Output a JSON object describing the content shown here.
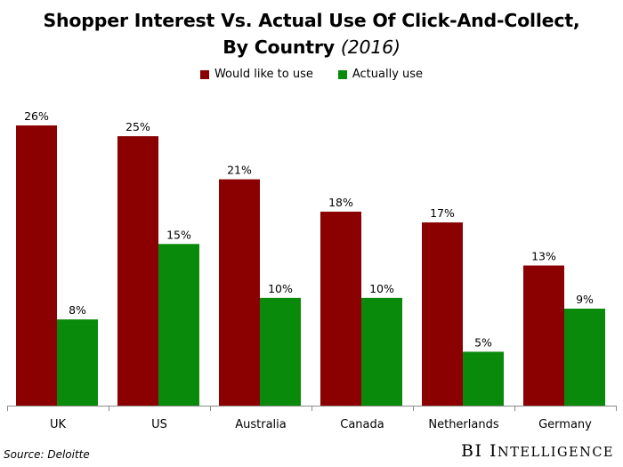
{
  "header": {
    "title_line1": "Shopper Interest Vs. Actual Use Of Click-And-Collect,",
    "title_line2": "By Country",
    "title_year": "(2016)"
  },
  "legend": {
    "items": [
      {
        "label": "Would like to use",
        "color": "#8b0000"
      },
      {
        "label": "Actually use",
        "color": "#0a8a0a"
      }
    ]
  },
  "chart_data": {
    "type": "bar",
    "title": "Shopper Interest Vs. Actual Use Of Click-And-Collect, By Country (2016)",
    "categories": [
      "UK",
      "US",
      "Australia",
      "Canada",
      "Netherlands",
      "Germany"
    ],
    "series": [
      {
        "name": "Would like to use",
        "color": "#8b0000",
        "values": [
          26,
          25,
          21,
          18,
          17,
          13
        ],
        "labels": [
          "26%",
          "25%",
          "21%",
          "18%",
          "17%",
          "13%"
        ]
      },
      {
        "name": "Actually use",
        "color": "#0a8a0a",
        "values": [
          8,
          15,
          10,
          10,
          5,
          9
        ],
        "labels": [
          "8%",
          "15%",
          "10%",
          "10%",
          "5%",
          "9%"
        ]
      }
    ],
    "ylim": [
      0,
      28
    ],
    "grid": false,
    "legend_position": "top"
  },
  "footer": {
    "source": "Source: Deloitte",
    "brand_first": "BI",
    "brand_second_initial": "I",
    "brand_second_rest": "NTELLIGENCE"
  }
}
